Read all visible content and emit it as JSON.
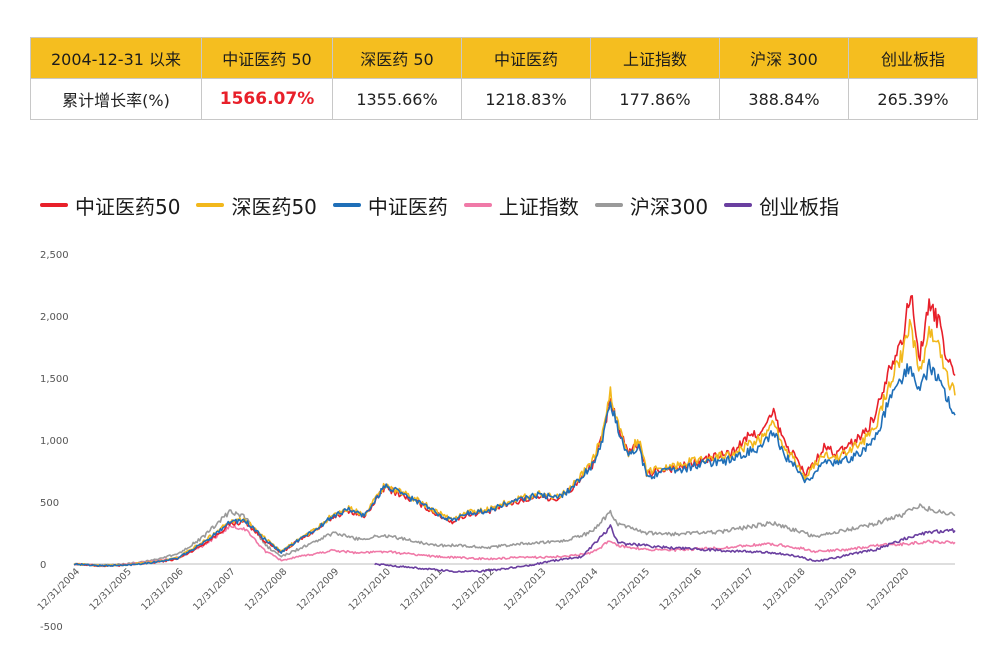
{
  "table": {
    "header": [
      "2004-12-31 以来",
      "中证医药 50",
      "深医药 50",
      "中证医药",
      "上证指数",
      "沪深 300",
      "创业板指"
    ],
    "row": [
      "累计增长率(%)",
      "1566.07%",
      "1355.66%",
      "1218.83%",
      "177.86%",
      "388.84%",
      "265.39%"
    ]
  },
  "colors": {
    "header_bg": "#f5be1f",
    "highlight": "#e8202a"
  },
  "chart_data": {
    "type": "line",
    "title": "",
    "xlabel": "",
    "ylabel": "",
    "ylim": [
      -500,
      2500
    ],
    "yticks": [
      -500,
      0,
      500,
      1000,
      1500,
      2000,
      2500
    ],
    "ytick_labels": [
      "-500",
      "0",
      "500",
      "1,000",
      "1,500",
      "2,000",
      "2,500"
    ],
    "xticks": [
      "12/31/2004",
      "12/31/2005",
      "12/31/2006",
      "12/31/2007",
      "12/31/2008",
      "12/31/2009",
      "12/31/2010",
      "12/31/2011",
      "12/31/2012",
      "12/31/2013",
      "12/31/2014",
      "12/31/2015",
      "12/31/2016",
      "12/31/2017",
      "12/31/2018",
      "12/31/2019",
      "12/31/2020"
    ],
    "series": [
      {
        "name": "中证医药50",
        "color": "#e8202a",
        "points": [
          [
            0,
            0
          ],
          [
            0.5,
            -15
          ],
          [
            1,
            -10
          ],
          [
            1.5,
            10
          ],
          [
            2,
            40
          ],
          [
            2.5,
            160
          ],
          [
            2.8,
            250
          ],
          [
            3,
            320
          ],
          [
            3.3,
            340
          ],
          [
            3.7,
            180
          ],
          [
            4,
            90
          ],
          [
            4.3,
            180
          ],
          [
            4.7,
            280
          ],
          [
            5,
            380
          ],
          [
            5.3,
            430
          ],
          [
            5.6,
            380
          ],
          [
            5.8,
            500
          ],
          [
            6,
            620
          ],
          [
            6.3,
            560
          ],
          [
            6.7,
            480
          ],
          [
            7,
            400
          ],
          [
            7.3,
            340
          ],
          [
            7.6,
            400
          ],
          [
            8,
            420
          ],
          [
            8.3,
            470
          ],
          [
            8.7,
            520
          ],
          [
            9,
            550
          ],
          [
            9.3,
            520
          ],
          [
            9.6,
            600
          ],
          [
            10,
            800
          ],
          [
            10.2,
            1020
          ],
          [
            10.35,
            1350
          ],
          [
            10.5,
            1100
          ],
          [
            10.7,
            880
          ],
          [
            10.9,
            980
          ],
          [
            11.05,
            720
          ],
          [
            11.3,
            760
          ],
          [
            11.7,
            780
          ],
          [
            12,
            820
          ],
          [
            12.3,
            860
          ],
          [
            12.7,
            900
          ],
          [
            13,
            1020
          ],
          [
            13.3,
            1080
          ],
          [
            13.5,
            1220
          ],
          [
            13.7,
            980
          ],
          [
            13.9,
            880
          ],
          [
            14.1,
            720
          ],
          [
            14.3,
            820
          ],
          [
            14.5,
            950
          ],
          [
            14.7,
            880
          ],
          [
            15,
            970
          ],
          [
            15.3,
            1080
          ],
          [
            15.5,
            1250
          ],
          [
            15.7,
            1550
          ],
          [
            15.9,
            1750
          ],
          [
            16,
            1850
          ],
          [
            16.15,
            2200
          ],
          [
            16.3,
            1650
          ],
          [
            16.5,
            2080
          ],
          [
            16.7,
            1950
          ],
          [
            16.85,
            1650
          ],
          [
            17,
            1520
          ]
        ]
      },
      {
        "name": "深医药50",
        "color": "#f2b81c",
        "points": [
          [
            0,
            0
          ],
          [
            0.5,
            -12
          ],
          [
            1,
            -8
          ],
          [
            1.5,
            15
          ],
          [
            2,
            50
          ],
          [
            2.5,
            180
          ],
          [
            2.8,
            280
          ],
          [
            3,
            350
          ],
          [
            3.3,
            360
          ],
          [
            3.7,
            200
          ],
          [
            4,
            100
          ],
          [
            4.3,
            190
          ],
          [
            4.7,
            290
          ],
          [
            5,
            400
          ],
          [
            5.3,
            450
          ],
          [
            5.6,
            400
          ],
          [
            5.8,
            520
          ],
          [
            6,
            640
          ],
          [
            6.3,
            580
          ],
          [
            6.7,
            500
          ],
          [
            7,
            420
          ],
          [
            7.3,
            360
          ],
          [
            7.6,
            420
          ],
          [
            8,
            440
          ],
          [
            8.3,
            490
          ],
          [
            8.7,
            540
          ],
          [
            9,
            570
          ],
          [
            9.3,
            540
          ],
          [
            9.6,
            620
          ],
          [
            10,
            820
          ],
          [
            10.2,
            1040
          ],
          [
            10.35,
            1380
          ],
          [
            10.5,
            1120
          ],
          [
            10.7,
            900
          ],
          [
            10.9,
            1000
          ],
          [
            11.05,
            740
          ],
          [
            11.3,
            780
          ],
          [
            11.7,
            800
          ],
          [
            12,
            840
          ],
          [
            12.3,
            860
          ],
          [
            12.7,
            880
          ],
          [
            13,
            960
          ],
          [
            13.3,
            1020
          ],
          [
            13.5,
            1130
          ],
          [
            13.7,
            930
          ],
          [
            13.9,
            840
          ],
          [
            14.1,
            700
          ],
          [
            14.3,
            800
          ],
          [
            14.5,
            900
          ],
          [
            14.7,
            850
          ],
          [
            15,
            920
          ],
          [
            15.3,
            1020
          ],
          [
            15.5,
            1150
          ],
          [
            15.7,
            1420
          ],
          [
            15.9,
            1620
          ],
          [
            16,
            1700
          ],
          [
            16.15,
            1960
          ],
          [
            16.3,
            1520
          ],
          [
            16.5,
            1860
          ],
          [
            16.7,
            1760
          ],
          [
            16.85,
            1500
          ],
          [
            17,
            1360
          ]
        ]
      },
      {
        "name": "中证医药",
        "color": "#1f6fb8",
        "points": [
          [
            0,
            0
          ],
          [
            0.5,
            -14
          ],
          [
            1,
            -10
          ],
          [
            1.5,
            12
          ],
          [
            2,
            45
          ],
          [
            2.5,
            170
          ],
          [
            2.8,
            270
          ],
          [
            3,
            340
          ],
          [
            3.3,
            350
          ],
          [
            3.7,
            190
          ],
          [
            4,
            95
          ],
          [
            4.3,
            185
          ],
          [
            4.7,
            285
          ],
          [
            5,
            390
          ],
          [
            5.3,
            440
          ],
          [
            5.6,
            390
          ],
          [
            5.8,
            510
          ],
          [
            6,
            630
          ],
          [
            6.3,
            570
          ],
          [
            6.7,
            490
          ],
          [
            7,
            410
          ],
          [
            7.3,
            350
          ],
          [
            7.6,
            410
          ],
          [
            8,
            430
          ],
          [
            8.3,
            480
          ],
          [
            8.7,
            530
          ],
          [
            9,
            560
          ],
          [
            9.3,
            530
          ],
          [
            9.6,
            610
          ],
          [
            10,
            800
          ],
          [
            10.2,
            1000
          ],
          [
            10.35,
            1300
          ],
          [
            10.5,
            1080
          ],
          [
            10.7,
            860
          ],
          [
            10.9,
            960
          ],
          [
            11.05,
            700
          ],
          [
            11.3,
            740
          ],
          [
            11.7,
            760
          ],
          [
            12,
            800
          ],
          [
            12.3,
            820
          ],
          [
            12.7,
            840
          ],
          [
            13,
            900
          ],
          [
            13.3,
            960
          ],
          [
            13.5,
            1060
          ],
          [
            13.7,
            880
          ],
          [
            13.9,
            790
          ],
          [
            14.1,
            650
          ],
          [
            14.3,
            740
          ],
          [
            14.5,
            850
          ],
          [
            14.7,
            800
          ],
          [
            15,
            860
          ],
          [
            15.3,
            940
          ],
          [
            15.5,
            1050
          ],
          [
            15.7,
            1280
          ],
          [
            15.9,
            1460
          ],
          [
            16,
            1520
          ],
          [
            16.15,
            1600
          ],
          [
            16.3,
            1380
          ],
          [
            16.5,
            1600
          ],
          [
            16.7,
            1500
          ],
          [
            16.85,
            1320
          ],
          [
            17,
            1200
          ]
        ]
      },
      {
        "name": "上证指数",
        "color": "#f07aa8",
        "points": [
          [
            0,
            0
          ],
          [
            0.5,
            -15
          ],
          [
            1,
            -5
          ],
          [
            1.5,
            20
          ],
          [
            2,
            50
          ],
          [
            2.5,
            150
          ],
          [
            3,
            300
          ],
          [
            3.3,
            280
          ],
          [
            3.7,
            100
          ],
          [
            4,
            30
          ],
          [
            4.5,
            70
          ],
          [
            5,
            110
          ],
          [
            5.5,
            90
          ],
          [
            6,
            100
          ],
          [
            6.5,
            80
          ],
          [
            7,
            60
          ],
          [
            7.5,
            50
          ],
          [
            8,
            40
          ],
          [
            8.5,
            50
          ],
          [
            9,
            55
          ],
          [
            9.5,
            60
          ],
          [
            10,
            90
          ],
          [
            10.35,
            190
          ],
          [
            10.5,
            150
          ],
          [
            11,
            120
          ],
          [
            11.5,
            110
          ],
          [
            12,
            120
          ],
          [
            12.5,
            130
          ],
          [
            13,
            150
          ],
          [
            13.5,
            160
          ],
          [
            14,
            130
          ],
          [
            14.3,
            100
          ],
          [
            14.7,
            110
          ],
          [
            15,
            120
          ],
          [
            15.5,
            150
          ],
          [
            16,
            160
          ],
          [
            16.5,
            180
          ],
          [
            17,
            175
          ]
        ]
      },
      {
        "name": "沪深300",
        "color": "#9a9a9a",
        "points": [
          [
            0,
            0
          ],
          [
            0.5,
            -12
          ],
          [
            1,
            0
          ],
          [
            1.5,
            30
          ],
          [
            2,
            80
          ],
          [
            2.5,
            220
          ],
          [
            3,
            420
          ],
          [
            3.3,
            380
          ],
          [
            3.7,
            150
          ],
          [
            4,
            60
          ],
          [
            4.5,
            150
          ],
          [
            5,
            250
          ],
          [
            5.5,
            200
          ],
          [
            6,
            230
          ],
          [
            6.5,
            190
          ],
          [
            7,
            150
          ],
          [
            7.5,
            150
          ],
          [
            8,
            130
          ],
          [
            8.5,
            160
          ],
          [
            9,
            170
          ],
          [
            9.5,
            190
          ],
          [
            10,
            260
          ],
          [
            10.35,
            420
          ],
          [
            10.5,
            320
          ],
          [
            11,
            250
          ],
          [
            11.5,
            240
          ],
          [
            12,
            250
          ],
          [
            12.5,
            260
          ],
          [
            13,
            300
          ],
          [
            13.5,
            330
          ],
          [
            14,
            260
          ],
          [
            14.3,
            220
          ],
          [
            14.7,
            260
          ],
          [
            15,
            280
          ],
          [
            15.5,
            330
          ],
          [
            16,
            400
          ],
          [
            16.3,
            470
          ],
          [
            16.6,
            430
          ],
          [
            17,
            390
          ]
        ]
      },
      {
        "name": "创业板指",
        "color": "#6a3fa0",
        "points": [
          [
            5.8,
            0
          ],
          [
            6.3,
            -20
          ],
          [
            6.8,
            -40
          ],
          [
            7.3,
            -60
          ],
          [
            7.8,
            -60
          ],
          [
            8.3,
            -40
          ],
          [
            8.8,
            -10
          ],
          [
            9.3,
            30
          ],
          [
            9.8,
            60
          ],
          [
            10.35,
            300
          ],
          [
            10.5,
            170
          ],
          [
            11,
            150
          ],
          [
            11.5,
            130
          ],
          [
            12,
            120
          ],
          [
            12.5,
            110
          ],
          [
            13,
            100
          ],
          [
            13.5,
            90
          ],
          [
            14,
            60
          ],
          [
            14.3,
            20
          ],
          [
            14.7,
            50
          ],
          [
            15,
            80
          ],
          [
            15.5,
            120
          ],
          [
            16,
            200
          ],
          [
            16.5,
            260
          ],
          [
            17,
            270
          ]
        ]
      }
    ]
  }
}
